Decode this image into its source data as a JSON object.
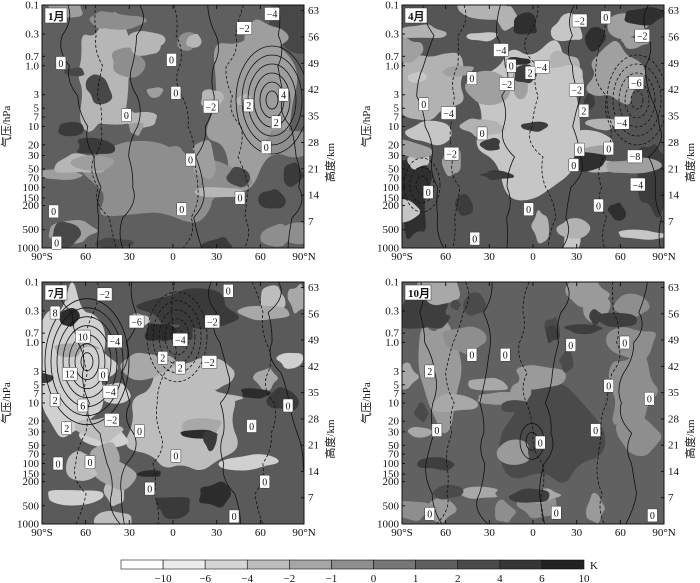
{
  "chart_data": [
    {
      "type": "heatmap",
      "panel_label": "1月",
      "x_ticks": [
        "90°S",
        "60",
        "30",
        "0",
        "30",
        "60",
        "90°N"
      ],
      "y_ticks_left": [
        "0.1",
        "0.3",
        "0.7",
        "1.0",
        "3",
        "5",
        "7",
        "10",
        "20",
        "30",
        "50",
        "70",
        "100",
        "150",
        "200",
        "500",
        "1000"
      ],
      "y_ticks_right": [
        "63",
        "56",
        "49",
        "42",
        "35",
        "28",
        "21",
        "14",
        "7"
      ],
      "ylabel_left": "气压/hPa",
      "ylabel_right": "高度/km",
      "xlim": [
        -90,
        90
      ],
      "ylim": [
        1000,
        0.1
      ],
      "contour_labels": [
        {
          "lat": -77,
          "p": 0.9,
          "v": "0"
        },
        {
          "lat": -32,
          "p": 6.5,
          "v": "0"
        },
        {
          "lat": -1,
          "p": 0.8,
          "v": "0"
        },
        {
          "lat": 49,
          "p": 0.24,
          "v": "−2"
        },
        {
          "lat": 68,
          "p": 0.14,
          "v": "−4"
        },
        {
          "lat": 26,
          "p": 4.7,
          "v": "−2"
        },
        {
          "lat": 2,
          "p": 2.8,
          "v": "0"
        },
        {
          "lat": 52,
          "p": 4.5,
          "v": "2"
        },
        {
          "lat": 76,
          "p": 3,
          "v": "4"
        },
        {
          "lat": 71,
          "p": 8.5,
          "v": "2"
        },
        {
          "lat": 64,
          "p": 22,
          "v": "0"
        },
        {
          "lat": 12,
          "p": 35,
          "v": "0"
        },
        {
          "lat": 46,
          "p": 150,
          "v": "0"
        },
        {
          "lat": 6,
          "p": 230,
          "v": "0"
        },
        {
          "lat": -82,
          "p": 250,
          "v": "0"
        },
        {
          "lat": -80,
          "p": 820,
          "v": "0"
        }
      ]
    },
    {
      "type": "heatmap",
      "panel_label": "4月",
      "x_ticks": [
        "90°S",
        "60",
        "30",
        "0",
        "30",
        "60",
        "90°N"
      ],
      "y_ticks_left": [
        "0.1",
        "0.3",
        "0.7",
        "1.0",
        "3",
        "5",
        "7",
        "10",
        "20",
        "30",
        "50",
        "70",
        "100",
        "150",
        "200",
        "500",
        "1000"
      ],
      "y_ticks_right": [
        "63",
        "56",
        "49",
        "42",
        "35",
        "28",
        "21",
        "14",
        "7"
      ],
      "ylabel_left": "气压/hPa",
      "ylabel_right": "高度/km",
      "xlim": [
        -90,
        90
      ],
      "ylim": [
        1000,
        0.1
      ],
      "contour_labels": [
        {
          "lat": 32,
          "p": 0.18,
          "v": "−2"
        },
        {
          "lat": 50,
          "p": 0.16,
          "v": "0"
        },
        {
          "lat": 75,
          "p": 0.32,
          "v": "−2"
        },
        {
          "lat": -22,
          "p": 0.55,
          "v": "−4"
        },
        {
          "lat": -15,
          "p": 1.0,
          "v": "0"
        },
        {
          "lat": 6,
          "p": 1.05,
          "v": "−4"
        },
        {
          "lat": -2,
          "p": 1.3,
          "v": "2"
        },
        {
          "lat": -42,
          "p": 1.6,
          "v": "0"
        },
        {
          "lat": -18,
          "p": 2.0,
          "v": "−2"
        },
        {
          "lat": 30,
          "p": 2.5,
          "v": "−2"
        },
        {
          "lat": 71,
          "p": 1.9,
          "v": "−6"
        },
        {
          "lat": -75,
          "p": 4.3,
          "v": "0"
        },
        {
          "lat": -58,
          "p": 6,
          "v": "−4"
        },
        {
          "lat": 35,
          "p": 5.5,
          "v": "2"
        },
        {
          "lat": 61,
          "p": 8.7,
          "v": "−4"
        },
        {
          "lat": -35,
          "p": 13,
          "v": "0"
        },
        {
          "lat": -56,
          "p": 28,
          "v": "−2"
        },
        {
          "lat": 32,
          "p": 24,
          "v": "0"
        },
        {
          "lat": 52,
          "p": 23,
          "v": "0"
        },
        {
          "lat": 70,
          "p": 31,
          "v": "−8"
        },
        {
          "lat": 28,
          "p": 43,
          "v": "0"
        },
        {
          "lat": 72,
          "p": 90,
          "v": "−4"
        },
        {
          "lat": -72,
          "p": 120,
          "v": "0"
        },
        {
          "lat": 45,
          "p": 200,
          "v": "0"
        },
        {
          "lat": -3,
          "p": 230,
          "v": "0"
        },
        {
          "lat": -40,
          "p": 700,
          "v": "0"
        }
      ]
    },
    {
      "type": "heatmap",
      "panel_label": "7月",
      "x_ticks": [
        "90°S",
        "60",
        "30",
        "0",
        "30",
        "60",
        "90°N"
      ],
      "y_ticks_left": [
        "0.1",
        "0.3",
        "0.7",
        "1.0",
        "3",
        "5",
        "7",
        "10",
        "20",
        "30",
        "50",
        "70",
        "100",
        "150",
        "200",
        "500",
        "1000"
      ],
      "y_ticks_right": [
        "63",
        "56",
        "49",
        "42",
        "35",
        "28",
        "21",
        "14",
        "7"
      ],
      "ylabel_left": "气压/hPa",
      "ylabel_right": "高度/km",
      "xlim": [
        -90,
        90
      ],
      "ylim": [
        1000,
        0.1
      ],
      "contour_labels": [
        {
          "lat": -47,
          "p": 0.16,
          "v": "−2"
        },
        {
          "lat": 38,
          "p": 0.14,
          "v": "0"
        },
        {
          "lat": -81,
          "p": 0.32,
          "v": "8"
        },
        {
          "lat": -25,
          "p": 0.45,
          "v": "−6"
        },
        {
          "lat": 27,
          "p": 0.45,
          "v": "−2"
        },
        {
          "lat": -62,
          "p": 0.8,
          "v": "10"
        },
        {
          "lat": -40,
          "p": 0.95,
          "v": "−4"
        },
        {
          "lat": 5,
          "p": 0.9,
          "v": "−4"
        },
        {
          "lat": -7,
          "p": 1.8,
          "v": "2"
        },
        {
          "lat": 25,
          "p": 2.1,
          "v": "−2"
        },
        {
          "lat": 5,
          "p": 2.6,
          "v": "2"
        },
        {
          "lat": -71,
          "p": 3.3,
          "v": "12"
        },
        {
          "lat": -48,
          "p": 3.4,
          "v": "0"
        },
        {
          "lat": -43,
          "p": 6.5,
          "v": "−4"
        },
        {
          "lat": -81,
          "p": 9,
          "v": "2"
        },
        {
          "lat": -62,
          "p": 11,
          "v": "6"
        },
        {
          "lat": -42,
          "p": 19,
          "v": "−2"
        },
        {
          "lat": -73,
          "p": 26,
          "v": "2"
        },
        {
          "lat": -23,
          "p": 29,
          "v": "0"
        },
        {
          "lat": 54,
          "p": 24,
          "v": "0"
        },
        {
          "lat": 79,
          "p": 11,
          "v": "0"
        },
        {
          "lat": 2,
          "p": 75,
          "v": "0"
        },
        {
          "lat": -79,
          "p": 100,
          "v": "0"
        },
        {
          "lat": -57,
          "p": 95,
          "v": "0"
        },
        {
          "lat": 63,
          "p": 200,
          "v": "0"
        },
        {
          "lat": -16,
          "p": 260,
          "v": "0"
        },
        {
          "lat": 42,
          "p": 750,
          "v": "0"
        }
      ]
    },
    {
      "type": "heatmap",
      "panel_label": "10月",
      "x_ticks": [
        "90°S",
        "60",
        "30",
        "0",
        "30",
        "60",
        "90°N"
      ],
      "y_ticks_left": [
        "0.1",
        "0.3",
        "0.7",
        "1.0",
        "3",
        "5",
        "7",
        "10",
        "20",
        "30",
        "50",
        "70",
        "100",
        "150",
        "200",
        "500",
        "1000"
      ],
      "y_ticks_right": [
        "63",
        "56",
        "49",
        "42",
        "35",
        "28",
        "21",
        "14",
        "7"
      ],
      "ylabel_left": "气压/hPa",
      "ylabel_right": "高度/km",
      "xlim": [
        -90,
        90
      ],
      "ylim": [
        1000,
        0.1
      ],
      "contour_labels": [
        {
          "lat": -71,
          "p": 3,
          "v": "2"
        },
        {
          "lat": -42,
          "p": 1.6,
          "v": "0"
        },
        {
          "lat": -19,
          "p": 1.6,
          "v": "0"
        },
        {
          "lat": 26,
          "p": 1.1,
          "v": "0"
        },
        {
          "lat": 63,
          "p": 1.0,
          "v": "0"
        },
        {
          "lat": 52,
          "p": 5.2,
          "v": "0"
        },
        {
          "lat": 80,
          "p": 8.5,
          "v": "0"
        },
        {
          "lat": -66,
          "p": 28,
          "v": "0"
        },
        {
          "lat": 5,
          "p": 45,
          "v": "0"
        },
        {
          "lat": 43,
          "p": 28,
          "v": "0"
        },
        {
          "lat": -71,
          "p": 680,
          "v": "0"
        },
        {
          "lat": 16,
          "p": 650,
          "v": "0"
        },
        {
          "lat": 82,
          "p": 720,
          "v": "0"
        }
      ]
    },
    {
      "type": "colorbar",
      "unit": "K",
      "boundaries": [
        "−10",
        "−6",
        "−4",
        "−2",
        "−1",
        "0",
        "1",
        "2",
        "4",
        "6",
        "10"
      ],
      "colors": [
        "#ffffff",
        "#ebebeb",
        "#d5d5d5",
        "#bdbdbd",
        "#a6a6a6",
        "#8e8e8e",
        "#767676",
        "#5f5f5f",
        "#4a4a4a",
        "#363636",
        "#222222"
      ]
    }
  ]
}
